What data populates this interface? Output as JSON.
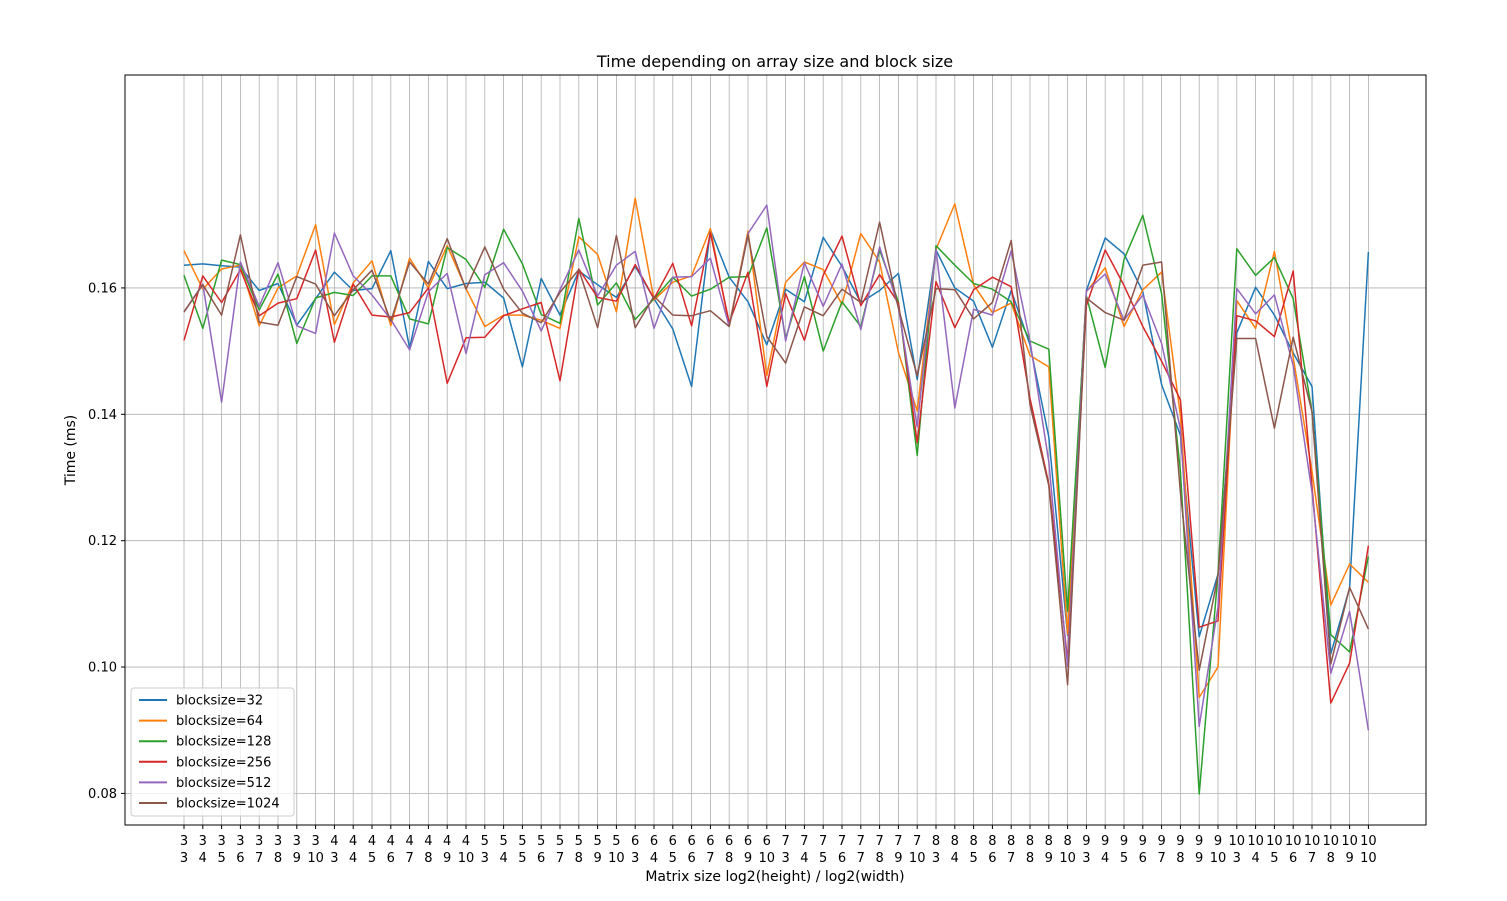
{
  "chart_data": {
    "type": "line",
    "title": "Time depending on array size and block size",
    "xlabel": "Matrix size log2(height) / log2(width)",
    "ylabel": "Time (ms)",
    "ylim": [
      0.075,
      0.1937
    ],
    "yticks": [
      0.08,
      0.1,
      0.12,
      0.14,
      0.16
    ],
    "ytick_labels": [
      "0.08",
      "0.10",
      "0.12",
      "0.14",
      "0.16"
    ],
    "grid": true,
    "legend_position": "lower-left",
    "categories": [
      [
        "3",
        "3"
      ],
      [
        "3",
        "4"
      ],
      [
        "3",
        "5"
      ],
      [
        "3",
        "6"
      ],
      [
        "3",
        "7"
      ],
      [
        "3",
        "8"
      ],
      [
        "3",
        "9"
      ],
      [
        "3",
        "10"
      ],
      [
        "4",
        "3"
      ],
      [
        "4",
        "4"
      ],
      [
        "4",
        "5"
      ],
      [
        "4",
        "6"
      ],
      [
        "4",
        "7"
      ],
      [
        "4",
        "8"
      ],
      [
        "4",
        "9"
      ],
      [
        "4",
        "10"
      ],
      [
        "5",
        "3"
      ],
      [
        "5",
        "4"
      ],
      [
        "5",
        "5"
      ],
      [
        "5",
        "6"
      ],
      [
        "5",
        "7"
      ],
      [
        "5",
        "8"
      ],
      [
        "5",
        "9"
      ],
      [
        "5",
        "10"
      ],
      [
        "6",
        "3"
      ],
      [
        "6",
        "4"
      ],
      [
        "6",
        "5"
      ],
      [
        "6",
        "6"
      ],
      [
        "6",
        "7"
      ],
      [
        "6",
        "8"
      ],
      [
        "6",
        "9"
      ],
      [
        "6",
        "10"
      ],
      [
        "7",
        "3"
      ],
      [
        "7",
        "4"
      ],
      [
        "7",
        "5"
      ],
      [
        "7",
        "6"
      ],
      [
        "7",
        "7"
      ],
      [
        "7",
        "8"
      ],
      [
        "7",
        "9"
      ],
      [
        "7",
        "10"
      ],
      [
        "8",
        "3"
      ],
      [
        "8",
        "4"
      ],
      [
        "8",
        "5"
      ],
      [
        "8",
        "6"
      ],
      [
        "8",
        "7"
      ],
      [
        "8",
        "8"
      ],
      [
        "8",
        "9"
      ],
      [
        "8",
        "10"
      ],
      [
        "9",
        "3"
      ],
      [
        "9",
        "4"
      ],
      [
        "9",
        "5"
      ],
      [
        "9",
        "6"
      ],
      [
        "9",
        "7"
      ],
      [
        "9",
        "8"
      ],
      [
        "9",
        "9"
      ],
      [
        "9",
        "10"
      ],
      [
        "10",
        "3"
      ],
      [
        "10",
        "4"
      ],
      [
        "10",
        "5"
      ],
      [
        "10",
        "6"
      ],
      [
        "10",
        "7"
      ],
      [
        "10",
        "8"
      ],
      [
        "10",
        "9"
      ],
      [
        "10",
        "10"
      ]
    ],
    "series": [
      {
        "name": "blocksize=32",
        "color": "#1f77b4",
        "values": [
          0.1636,
          0.1638,
          0.1635,
          0.1633,
          0.1596,
          0.1607,
          0.1541,
          0.1583,
          0.1625,
          0.1596,
          0.1599,
          0.1659,
          0.1505,
          0.1642,
          0.1599,
          0.1607,
          0.1609,
          0.1584,
          0.1475,
          0.1615,
          0.1557,
          0.1627,
          0.1605,
          0.1585,
          0.1634,
          0.1583,
          0.1535,
          0.1444,
          0.1692,
          0.1617,
          0.1578,
          0.151,
          0.1598,
          0.1578,
          0.168,
          0.1634,
          0.1577,
          0.1596,
          0.1623,
          0.1455,
          0.166,
          0.16,
          0.1579,
          0.1506,
          0.1596,
          0.151,
          0.1364,
          0.105,
          0.1596,
          0.1679,
          0.1654,
          0.1594,
          0.1447,
          0.1367,
          0.1048,
          0.1147,
          0.1529,
          0.1601,
          0.1557,
          0.1497,
          0.1444,
          0.1021,
          0.1125,
          0.1657
        ]
      },
      {
        "name": "blocksize=64",
        "color": "#ff7f0e",
        "values": [
          0.1659,
          0.1598,
          0.163,
          0.1636,
          0.154,
          0.16,
          0.1619,
          0.17,
          0.1542,
          0.1608,
          0.1643,
          0.154,
          0.1647,
          0.16,
          0.1667,
          0.1599,
          0.1539,
          0.1557,
          0.1557,
          0.1549,
          0.1536,
          0.1681,
          0.1653,
          0.1562,
          0.1742,
          0.1581,
          0.1609,
          0.1619,
          0.1694,
          0.154,
          0.169,
          0.1461,
          0.1609,
          0.1641,
          0.1629,
          0.1574,
          0.1686,
          0.1641,
          0.1498,
          0.1405,
          0.1661,
          0.1733,
          0.1605,
          0.1561,
          0.1576,
          0.1493,
          0.1475,
          0.1052,
          0.1594,
          0.1632,
          0.1539,
          0.1597,
          0.1625,
          0.1398,
          0.0952,
          0.1,
          0.158,
          0.1536,
          0.1658,
          0.149,
          0.131,
          0.1098,
          0.1163,
          0.1134
        ]
      },
      {
        "name": "blocksize=128",
        "color": "#2ca02c",
        "values": [
          0.162,
          0.1536,
          0.1644,
          0.1637,
          0.1565,
          0.1622,
          0.1512,
          0.1584,
          0.1593,
          0.1588,
          0.1619,
          0.1619,
          0.1551,
          0.1543,
          0.1664,
          0.1645,
          0.1601,
          0.1693,
          0.1638,
          0.1558,
          0.1544,
          0.171,
          0.1573,
          0.1608,
          0.155,
          0.1583,
          0.1617,
          0.1587,
          0.1598,
          0.1617,
          0.1618,
          0.1695,
          0.152,
          0.1618,
          0.15,
          0.1578,
          0.1539,
          0.166,
          0.1578,
          0.1335,
          0.1667,
          0.1636,
          0.1607,
          0.1598,
          0.1578,
          0.1516,
          0.1503,
          0.1088,
          0.1587,
          0.1474,
          0.1645,
          0.1715,
          0.1591,
          0.131,
          0.0799,
          0.1147,
          0.1662,
          0.162,
          0.1648,
          0.1583,
          0.1404,
          0.1051,
          0.1024,
          0.1175
        ]
      },
      {
        "name": "blocksize=256",
        "color": "#d62728",
        "values": [
          0.1517,
          0.1619,
          0.1577,
          0.1629,
          0.1556,
          0.1576,
          0.1583,
          0.166,
          0.1514,
          0.1606,
          0.1557,
          0.1554,
          0.1561,
          0.16,
          0.1449,
          0.1521,
          0.1522,
          0.1556,
          0.1567,
          0.1577,
          0.1453,
          0.163,
          0.1585,
          0.1579,
          0.1637,
          0.1583,
          0.1639,
          0.154,
          0.1687,
          0.1545,
          0.1625,
          0.1444,
          0.1591,
          0.1517,
          0.162,
          0.1682,
          0.1572,
          0.1621,
          0.1576,
          0.1355,
          0.161,
          0.1537,
          0.1597,
          0.1617,
          0.1602,
          0.1425,
          0.129,
          0.101,
          0.1572,
          0.166,
          0.1604,
          0.1539,
          0.1484,
          0.1423,
          0.1063,
          0.1073,
          0.1556,
          0.1548,
          0.1523,
          0.1627,
          0.1286,
          0.0943,
          0.1006,
          0.1192
        ]
      },
      {
        "name": "blocksize=512",
        "color": "#9467bd",
        "values": [
          0.1562,
          0.1606,
          0.1419,
          0.1641,
          0.1571,
          0.164,
          0.154,
          0.1528,
          0.1687,
          0.1619,
          0.1589,
          0.155,
          0.1502,
          0.1594,
          0.1623,
          0.1496,
          0.1621,
          0.164,
          0.1595,
          0.1532,
          0.1597,
          0.166,
          0.1587,
          0.1636,
          0.1658,
          0.1536,
          0.1617,
          0.1618,
          0.1647,
          0.1539,
          0.1686,
          0.1731,
          0.1516,
          0.164,
          0.1571,
          0.1638,
          0.1534,
          0.1665,
          0.157,
          0.138,
          0.1661,
          0.141,
          0.1566,
          0.1557,
          0.1659,
          0.1516,
          0.1325,
          0.1001,
          0.1595,
          0.1622,
          0.1549,
          0.1589,
          0.1512,
          0.1377,
          0.0906,
          0.1095,
          0.1599,
          0.1559,
          0.1589,
          0.1477,
          0.1277,
          0.099,
          0.1088,
          0.09
        ]
      },
      {
        "name": "blocksize=1024",
        "color": "#8c564b",
        "values": [
          0.1562,
          0.1605,
          0.1557,
          0.1684,
          0.1546,
          0.1541,
          0.1618,
          0.1606,
          0.1556,
          0.1597,
          0.1628,
          0.1547,
          0.1641,
          0.1606,
          0.1678,
          0.1598,
          0.1665,
          0.1598,
          0.156,
          0.1545,
          0.1593,
          0.1629,
          0.1537,
          0.1683,
          0.1537,
          0.1587,
          0.1557,
          0.1556,
          0.1564,
          0.1539,
          0.1684,
          0.1523,
          0.1481,
          0.157,
          0.1556,
          0.1598,
          0.1577,
          0.1704,
          0.1568,
          0.1461,
          0.1599,
          0.1597,
          0.1551,
          0.1577,
          0.1675,
          0.1415,
          0.1287,
          0.0972,
          0.1584,
          0.1561,
          0.1549,
          0.1636,
          0.1641,
          0.1276,
          0.0995,
          0.1144,
          0.152,
          0.152,
          0.1378,
          0.1522,
          0.1404,
          0.1005,
          0.1126,
          0.106
        ]
      }
    ]
  }
}
